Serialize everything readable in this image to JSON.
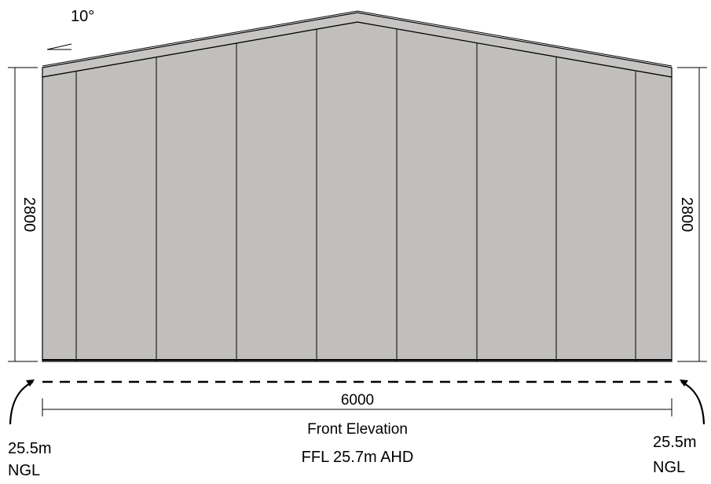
{
  "drawing": {
    "roof_pitch": "10°",
    "height_left": "2800",
    "height_right": "2800",
    "width": "6000",
    "title": "Front Elevation",
    "ffl": "FFL 25.7m AHD",
    "ngl_left": {
      "level": "25.5m",
      "label": "NGL"
    },
    "ngl_right": {
      "level": "25.5m",
      "label": "NGL"
    }
  },
  "colors": {
    "cladding": "#c0bfbe",
    "roof": "#c6c5c4",
    "line": "#000000"
  }
}
